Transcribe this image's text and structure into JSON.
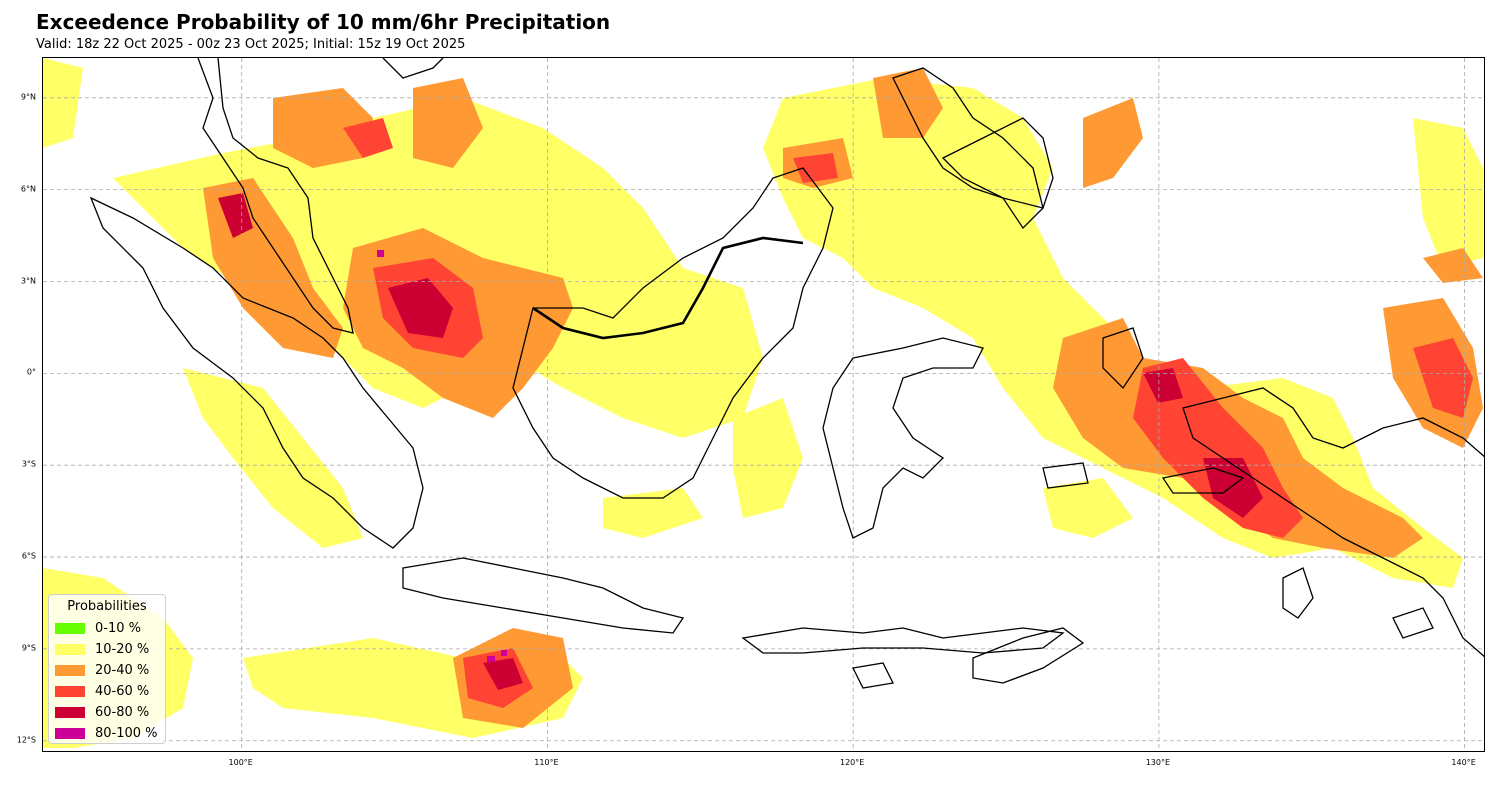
{
  "header": {
    "title": "Exceedence Probability of 10 mm/6hr Precipitation",
    "subtitle": "Valid: 18z 22 Oct 2025 - 00z 23 Oct 2025; Initial: 15z 19 Oct 2025"
  },
  "map": {
    "region": "Indonesia / Maritime Continent",
    "lat_ticks": [
      "9°N",
      "6°N",
      "3°N",
      "0°",
      "3°S",
      "6°S",
      "9°S",
      "12°S"
    ],
    "lon_ticks": [
      "100°E",
      "110°E",
      "120°E",
      "130°E",
      "140°E"
    ],
    "lat_values": [
      9,
      6,
      3,
      0,
      -3,
      -6,
      -9,
      -12
    ],
    "lon_values": [
      100,
      110,
      120,
      130,
      140
    ],
    "extent": {
      "lon_min": 93.5,
      "lon_max": 140.7,
      "lat_min": -12.4,
      "lat_max": 10.3
    },
    "gridlines": true
  },
  "legend": {
    "title": "Probabilities",
    "items": [
      {
        "label": "0-10 %",
        "color": "#66ff00"
      },
      {
        "label": "10-20 %",
        "color": "#ffff66"
      },
      {
        "label": "20-40 %",
        "color": "#ff9933"
      },
      {
        "label": "40-60 %",
        "color": "#ff4433"
      },
      {
        "label": "60-80 %",
        "color": "#cc0033"
      },
      {
        "label": "80-100 %",
        "color": "#cc0099"
      }
    ]
  }
}
